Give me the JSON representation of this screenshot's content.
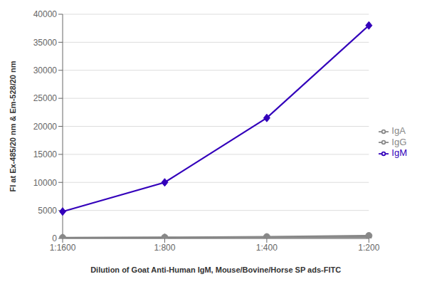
{
  "chart_data": {
    "type": "line",
    "xlabel": "Dilution of Goat Anti-Human IgM, Mouse/Bovine/Horse SP ads-FITC",
    "ylabel": "FI at Ex-485/20 nm & Em-528/20 nm",
    "categories": [
      "1:1600",
      "1:800",
      "1:400",
      "1:200"
    ],
    "series": [
      {
        "name": "IgM",
        "color": "#3300BB",
        "marker": "diamond",
        "values": [
          4800,
          10000,
          21500,
          38000
        ]
      },
      {
        "name": "IgG",
        "color": "#888888",
        "marker": "circle",
        "values": [
          150,
          200,
          300,
          500
        ]
      },
      {
        "name": "IgA",
        "color": "#888888",
        "marker": "triangle",
        "values": [
          100,
          150,
          200,
          250
        ]
      }
    ],
    "ylim": [
      0,
      40000
    ],
    "yticks": [
      0,
      5000,
      10000,
      15000,
      20000,
      25000,
      30000,
      35000,
      40000
    ],
    "grid": true,
    "legend": "right"
  }
}
